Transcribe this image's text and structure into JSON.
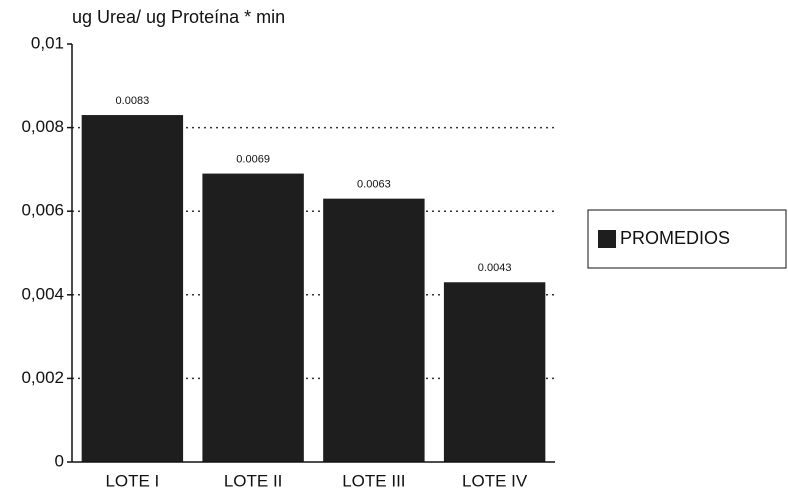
{
  "chart_data": {
    "type": "bar",
    "title": "ug Urea/ ug Proteína * min",
    "categories": [
      "LOTE I",
      "LOTE II",
      "LOTE III",
      "LOTE IV"
    ],
    "series": [
      {
        "name": "PROMEDIOS",
        "color": "#1e1e1e",
        "values": [
          0.0083,
          0.0069,
          0.0063,
          0.0043
        ]
      }
    ],
    "ylim": [
      0,
      0.01
    ],
    "yticks": [
      0,
      {
        "value": 0.002,
        "label": "0,002"
      },
      {
        "value": 0.004,
        "label": "0,004"
      },
      {
        "value": 0.006,
        "label": "0,006"
      },
      {
        "value": 0.008,
        "label": "0,008"
      },
      {
        "value": 0.01,
        "label": "0,01"
      }
    ],
    "grid": true,
    "legend": "right"
  }
}
